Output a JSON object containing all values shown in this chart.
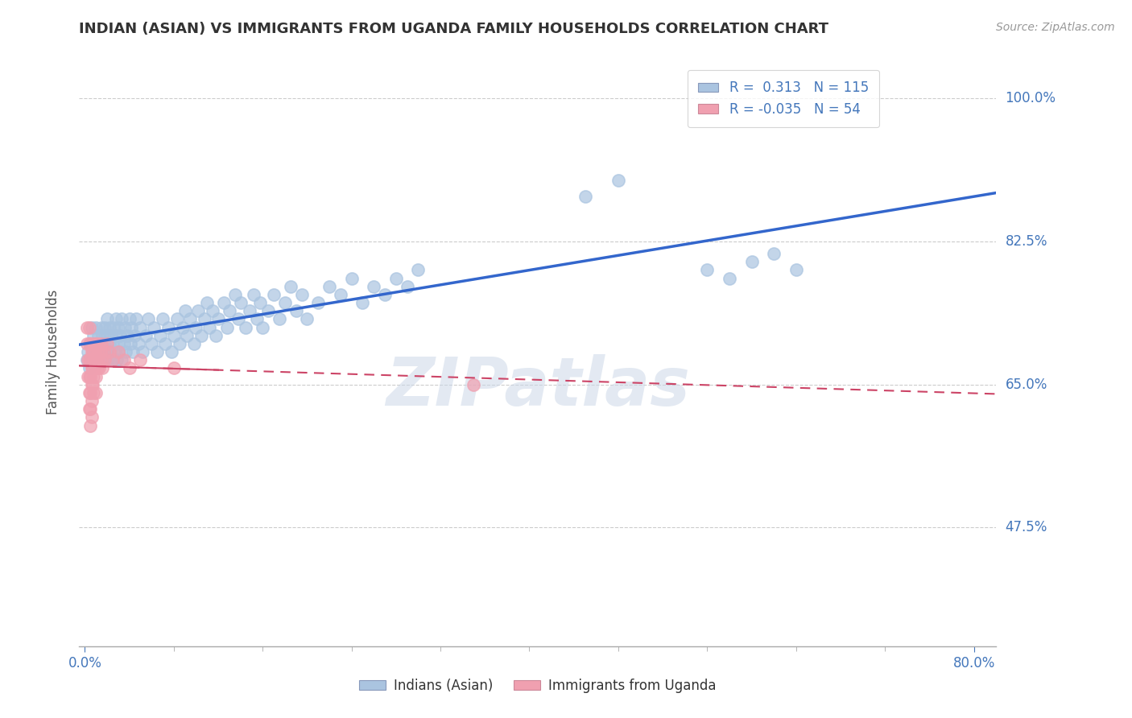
{
  "title": "INDIAN (ASIAN) VS IMMIGRANTS FROM UGANDA FAMILY HOUSEHOLDS CORRELATION CHART",
  "source": "Source: ZipAtlas.com",
  "ylabel": "Family Households",
  "ytick_labels": [
    "47.5%",
    "65.0%",
    "82.5%",
    "100.0%"
  ],
  "ytick_values": [
    0.475,
    0.65,
    0.825,
    1.0
  ],
  "xlim": [
    -0.005,
    0.82
  ],
  "ylim": [
    0.33,
    1.05
  ],
  "watermark": "ZIPatlas",
  "blue_scatter_color": "#aac4e0",
  "pink_scatter_color": "#f0a0b0",
  "blue_line_color": "#3366cc",
  "pink_line_color": "#cc4466",
  "grid_color": "#cccccc",
  "background_color": "#ffffff",
  "title_color": "#333333",
  "axis_label_color": "#4477bb",
  "legend_blue_color": "#aac4e0",
  "legend_pink_color": "#f0a0b0",
  "blue_points": [
    [
      0.002,
      0.68
    ],
    [
      0.003,
      0.69
    ],
    [
      0.004,
      0.67
    ],
    [
      0.005,
      0.7
    ],
    [
      0.006,
      0.68
    ],
    [
      0.006,
      0.72
    ],
    [
      0.007,
      0.69
    ],
    [
      0.008,
      0.71
    ],
    [
      0.009,
      0.68
    ],
    [
      0.01,
      0.7
    ],
    [
      0.01,
      0.72
    ],
    [
      0.011,
      0.69
    ],
    [
      0.012,
      0.71
    ],
    [
      0.013,
      0.68
    ],
    [
      0.014,
      0.7
    ],
    [
      0.015,
      0.72
    ],
    [
      0.015,
      0.69
    ],
    [
      0.016,
      0.71
    ],
    [
      0.017,
      0.68
    ],
    [
      0.018,
      0.7
    ],
    [
      0.018,
      0.72
    ],
    [
      0.019,
      0.69
    ],
    [
      0.02,
      0.71
    ],
    [
      0.02,
      0.73
    ],
    [
      0.021,
      0.68
    ],
    [
      0.022,
      0.7
    ],
    [
      0.022,
      0.72
    ],
    [
      0.023,
      0.69
    ],
    [
      0.024,
      0.71
    ],
    [
      0.025,
      0.68
    ],
    [
      0.025,
      0.7
    ],
    [
      0.026,
      0.72
    ],
    [
      0.027,
      0.69
    ],
    [
      0.028,
      0.71
    ],
    [
      0.028,
      0.73
    ],
    [
      0.029,
      0.68
    ],
    [
      0.03,
      0.7
    ],
    [
      0.03,
      0.72
    ],
    [
      0.031,
      0.69
    ],
    [
      0.032,
      0.71
    ],
    [
      0.033,
      0.73
    ],
    [
      0.033,
      0.68
    ],
    [
      0.035,
      0.7
    ],
    [
      0.036,
      0.72
    ],
    [
      0.037,
      0.69
    ],
    [
      0.038,
      0.71
    ],
    [
      0.04,
      0.73
    ],
    [
      0.041,
      0.7
    ],
    [
      0.042,
      0.72
    ],
    [
      0.043,
      0.69
    ],
    [
      0.045,
      0.71
    ],
    [
      0.046,
      0.73
    ],
    [
      0.048,
      0.7
    ],
    [
      0.05,
      0.72
    ],
    [
      0.052,
      0.69
    ],
    [
      0.055,
      0.71
    ],
    [
      0.057,
      0.73
    ],
    [
      0.06,
      0.7
    ],
    [
      0.062,
      0.72
    ],
    [
      0.065,
      0.69
    ],
    [
      0.068,
      0.71
    ],
    [
      0.07,
      0.73
    ],
    [
      0.072,
      0.7
    ],
    [
      0.075,
      0.72
    ],
    [
      0.078,
      0.69
    ],
    [
      0.08,
      0.71
    ],
    [
      0.083,
      0.73
    ],
    [
      0.085,
      0.7
    ],
    [
      0.088,
      0.72
    ],
    [
      0.09,
      0.74
    ],
    [
      0.092,
      0.71
    ],
    [
      0.095,
      0.73
    ],
    [
      0.098,
      0.7
    ],
    [
      0.1,
      0.72
    ],
    [
      0.102,
      0.74
    ],
    [
      0.105,
      0.71
    ],
    [
      0.108,
      0.73
    ],
    [
      0.11,
      0.75
    ],
    [
      0.112,
      0.72
    ],
    [
      0.115,
      0.74
    ],
    [
      0.118,
      0.71
    ],
    [
      0.12,
      0.73
    ],
    [
      0.125,
      0.75
    ],
    [
      0.128,
      0.72
    ],
    [
      0.13,
      0.74
    ],
    [
      0.135,
      0.76
    ],
    [
      0.138,
      0.73
    ],
    [
      0.14,
      0.75
    ],
    [
      0.145,
      0.72
    ],
    [
      0.148,
      0.74
    ],
    [
      0.152,
      0.76
    ],
    [
      0.155,
      0.73
    ],
    [
      0.158,
      0.75
    ],
    [
      0.16,
      0.72
    ],
    [
      0.165,
      0.74
    ],
    [
      0.17,
      0.76
    ],
    [
      0.175,
      0.73
    ],
    [
      0.18,
      0.75
    ],
    [
      0.185,
      0.77
    ],
    [
      0.19,
      0.74
    ],
    [
      0.195,
      0.76
    ],
    [
      0.2,
      0.73
    ],
    [
      0.21,
      0.75
    ],
    [
      0.22,
      0.77
    ],
    [
      0.23,
      0.76
    ],
    [
      0.24,
      0.78
    ],
    [
      0.25,
      0.75
    ],
    [
      0.26,
      0.77
    ],
    [
      0.27,
      0.76
    ],
    [
      0.28,
      0.78
    ],
    [
      0.29,
      0.77
    ],
    [
      0.3,
      0.79
    ],
    [
      0.45,
      0.88
    ],
    [
      0.48,
      0.9
    ],
    [
      0.56,
      0.79
    ],
    [
      0.58,
      0.78
    ],
    [
      0.6,
      0.8
    ],
    [
      0.62,
      0.81
    ],
    [
      0.64,
      0.79
    ]
  ],
  "pink_points": [
    [
      0.002,
      0.72
    ],
    [
      0.002,
      0.7
    ],
    [
      0.003,
      0.68
    ],
    [
      0.003,
      0.66
    ],
    [
      0.004,
      0.72
    ],
    [
      0.004,
      0.7
    ],
    [
      0.004,
      0.68
    ],
    [
      0.004,
      0.66
    ],
    [
      0.004,
      0.64
    ],
    [
      0.004,
      0.62
    ],
    [
      0.005,
      0.7
    ],
    [
      0.005,
      0.68
    ],
    [
      0.005,
      0.66
    ],
    [
      0.005,
      0.64
    ],
    [
      0.005,
      0.62
    ],
    [
      0.005,
      0.6
    ],
    [
      0.006,
      0.69
    ],
    [
      0.006,
      0.67
    ],
    [
      0.006,
      0.65
    ],
    [
      0.006,
      0.63
    ],
    [
      0.006,
      0.61
    ],
    [
      0.007,
      0.69
    ],
    [
      0.007,
      0.67
    ],
    [
      0.007,
      0.65
    ],
    [
      0.008,
      0.7
    ],
    [
      0.008,
      0.68
    ],
    [
      0.008,
      0.66
    ],
    [
      0.008,
      0.64
    ],
    [
      0.009,
      0.69
    ],
    [
      0.009,
      0.67
    ],
    [
      0.01,
      0.7
    ],
    [
      0.01,
      0.68
    ],
    [
      0.01,
      0.66
    ],
    [
      0.01,
      0.64
    ],
    [
      0.011,
      0.69
    ],
    [
      0.011,
      0.67
    ],
    [
      0.012,
      0.7
    ],
    [
      0.012,
      0.68
    ],
    [
      0.013,
      0.67
    ],
    [
      0.014,
      0.69
    ],
    [
      0.015,
      0.7
    ],
    [
      0.015,
      0.68
    ],
    [
      0.016,
      0.67
    ],
    [
      0.017,
      0.69
    ],
    [
      0.018,
      0.68
    ],
    [
      0.02,
      0.7
    ],
    [
      0.022,
      0.69
    ],
    [
      0.025,
      0.68
    ],
    [
      0.03,
      0.69
    ],
    [
      0.035,
      0.68
    ],
    [
      0.04,
      0.67
    ],
    [
      0.05,
      0.68
    ],
    [
      0.08,
      0.67
    ],
    [
      0.35,
      0.65
    ]
  ]
}
